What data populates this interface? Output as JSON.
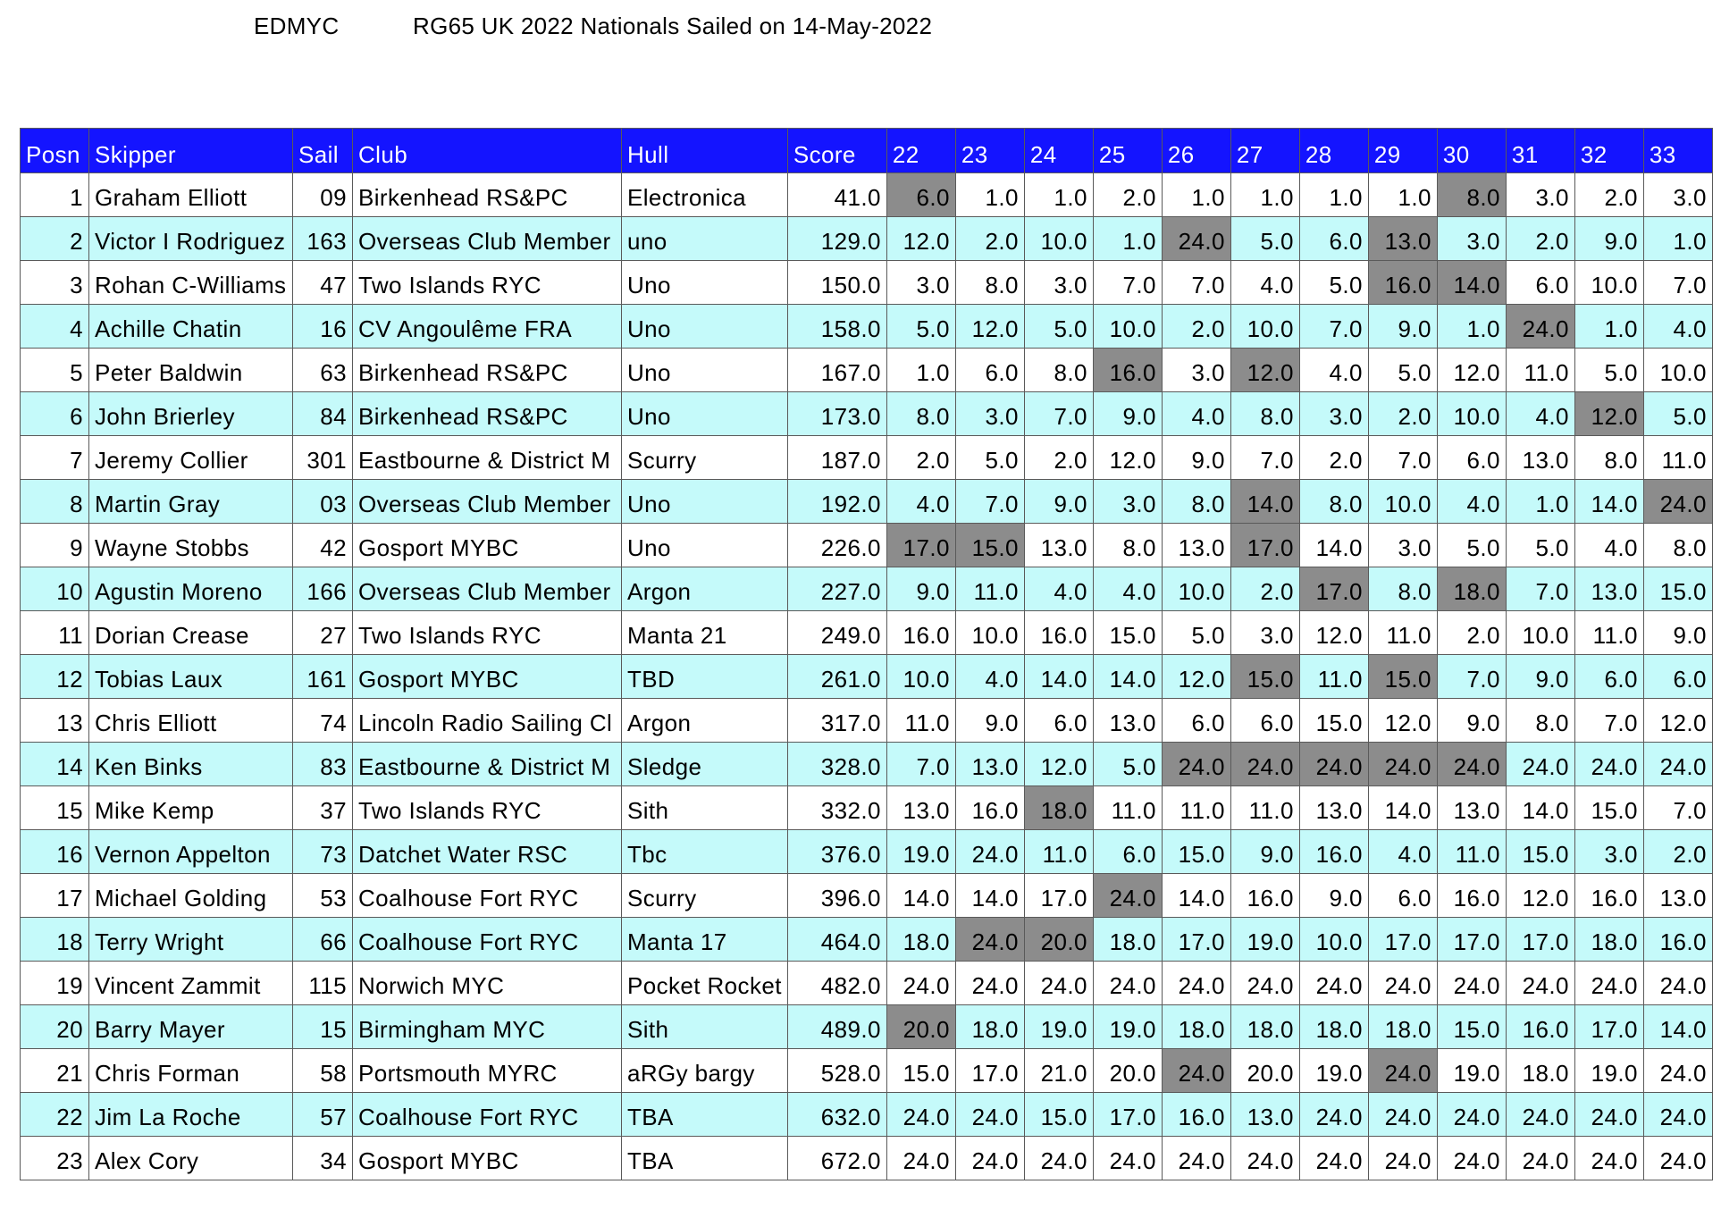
{
  "header": {
    "club_code": "EDMYC",
    "event_title": "RG65 UK 2022 Nationals Sailed on 14-May-2022"
  },
  "table": {
    "columns": [
      "Posn",
      "Skipper",
      "Sail",
      "Club",
      "Hull",
      "Score",
      "22",
      "23",
      "24",
      "25",
      "26",
      "27",
      "28",
      "29",
      "30",
      "31",
      "32",
      "33"
    ],
    "rows": [
      {
        "posn": "1",
        "skipper": "Graham Elliott",
        "sail": "09",
        "club": "Birkenhead RS&PC",
        "hull": "Electronica",
        "score": "41.0",
        "races": [
          "6.0",
          "1.0",
          "1.0",
          "2.0",
          "1.0",
          "1.0",
          "1.0",
          "1.0",
          "8.0",
          "3.0",
          "2.0",
          "3.0"
        ],
        "discards": [
          0,
          8
        ]
      },
      {
        "posn": "2",
        "skipper": "Victor I Rodriguez",
        "sail": "163",
        "club": "Overseas Club Member",
        "hull": "uno",
        "score": "129.0",
        "races": [
          "12.0",
          "2.0",
          "10.0",
          "1.0",
          "24.0",
          "5.0",
          "6.0",
          "13.0",
          "3.0",
          "2.0",
          "9.0",
          "1.0"
        ],
        "discards": [
          4,
          7
        ]
      },
      {
        "posn": "3",
        "skipper": "Rohan C-Williams",
        "sail": "47",
        "club": "Two Islands RYC",
        "hull": "Uno",
        "score": "150.0",
        "races": [
          "3.0",
          "8.0",
          "3.0",
          "7.0",
          "7.0",
          "4.0",
          "5.0",
          "16.0",
          "14.0",
          "6.0",
          "10.0",
          "7.0"
        ],
        "discards": [
          7,
          8
        ]
      },
      {
        "posn": "4",
        "skipper": "Achille Chatin",
        "sail": "16",
        "club": "CV Angoulême FRA",
        "hull": "Uno",
        "score": "158.0",
        "races": [
          "5.0",
          "12.0",
          "5.0",
          "10.0",
          "2.0",
          "10.0",
          "7.0",
          "9.0",
          "1.0",
          "24.0",
          "1.0",
          "4.0"
        ],
        "discards": [
          9
        ]
      },
      {
        "posn": "5",
        "skipper": "Peter Baldwin",
        "sail": "63",
        "club": "Birkenhead RS&PC",
        "hull": "Uno",
        "score": "167.0",
        "races": [
          "1.0",
          "6.0",
          "8.0",
          "16.0",
          "3.0",
          "12.0",
          "4.0",
          "5.0",
          "12.0",
          "11.0",
          "5.0",
          "10.0"
        ],
        "discards": [
          3,
          5
        ]
      },
      {
        "posn": "6",
        "skipper": "John Brierley",
        "sail": "84",
        "club": "Birkenhead RS&PC",
        "hull": "Uno",
        "score": "173.0",
        "races": [
          "8.0",
          "3.0",
          "7.0",
          "9.0",
          "4.0",
          "8.0",
          "3.0",
          "2.0",
          "10.0",
          "4.0",
          "12.0",
          "5.0"
        ],
        "discards": [
          10
        ]
      },
      {
        "posn": "7",
        "skipper": "Jeremy Collier",
        "sail": "301",
        "club": "Eastbourne & District M",
        "hull": "Scurry",
        "score": "187.0",
        "races": [
          "2.0",
          "5.0",
          "2.0",
          "12.0",
          "9.0",
          "7.0",
          "2.0",
          "7.0",
          "6.0",
          "13.0",
          "8.0",
          "11.0"
        ],
        "discards": []
      },
      {
        "posn": "8",
        "skipper": "Martin Gray",
        "sail": "03",
        "club": "Overseas Club Member",
        "hull": "Uno",
        "score": "192.0",
        "races": [
          "4.0",
          "7.0",
          "9.0",
          "3.0",
          "8.0",
          "14.0",
          "8.0",
          "10.0",
          "4.0",
          "1.0",
          "14.0",
          "24.0"
        ],
        "discards": [
          5,
          11
        ]
      },
      {
        "posn": "9",
        "skipper": "Wayne Stobbs",
        "sail": "42",
        "club": "Gosport MYBC",
        "hull": "Uno",
        "score": "226.0",
        "races": [
          "17.0",
          "15.0",
          "13.0",
          "8.0",
          "13.0",
          "17.0",
          "14.0",
          "3.0",
          "5.0",
          "5.0",
          "4.0",
          "8.0"
        ],
        "discards": [
          0,
          1,
          5
        ]
      },
      {
        "posn": "10",
        "skipper": "Agustin Moreno",
        "sail": "166",
        "club": "Overseas Club Member",
        "hull": "Argon",
        "score": "227.0",
        "races": [
          "9.0",
          "11.0",
          "4.0",
          "4.0",
          "10.0",
          "2.0",
          "17.0",
          "8.0",
          "18.0",
          "7.0",
          "13.0",
          "15.0"
        ],
        "discards": [
          6,
          8
        ]
      },
      {
        "posn": "11",
        "skipper": "Dorian Crease",
        "sail": "27",
        "club": "Two Islands RYC",
        "hull": "Manta 21",
        "score": "249.0",
        "races": [
          "16.0",
          "10.0",
          "16.0",
          "15.0",
          "5.0",
          "3.0",
          "12.0",
          "11.0",
          "2.0",
          "10.0",
          "11.0",
          "9.0"
        ],
        "discards": []
      },
      {
        "posn": "12",
        "skipper": "Tobias Laux",
        "sail": "161",
        "club": "Gosport MYBC",
        "hull": "TBD",
        "score": "261.0",
        "races": [
          "10.0",
          "4.0",
          "14.0",
          "14.0",
          "12.0",
          "15.0",
          "11.0",
          "15.0",
          "7.0",
          "9.0",
          "6.0",
          "6.0"
        ],
        "discards": [
          5,
          7
        ]
      },
      {
        "posn": "13",
        "skipper": "Chris Elliott",
        "sail": "74",
        "club": "Lincoln Radio Sailing Cl",
        "hull": "Argon",
        "score": "317.0",
        "races": [
          "11.0",
          "9.0",
          "6.0",
          "13.0",
          "6.0",
          "6.0",
          "15.0",
          "12.0",
          "9.0",
          "8.0",
          "7.0",
          "12.0"
        ],
        "discards": []
      },
      {
        "posn": "14",
        "skipper": "Ken Binks",
        "sail": "83",
        "club": "Eastbourne & District M",
        "hull": "Sledge",
        "score": "328.0",
        "races": [
          "7.0",
          "13.0",
          "12.0",
          "5.0",
          "24.0",
          "24.0",
          "24.0",
          "24.0",
          "24.0",
          "24.0",
          "24.0",
          "24.0"
        ],
        "discards": [
          4,
          5,
          6,
          7,
          8
        ]
      },
      {
        "posn": "15",
        "skipper": "Mike Kemp",
        "sail": "37",
        "club": "Two Islands RYC",
        "hull": "Sith",
        "score": "332.0",
        "races": [
          "13.0",
          "16.0",
          "18.0",
          "11.0",
          "11.0",
          "11.0",
          "13.0",
          "14.0",
          "13.0",
          "14.0",
          "15.0",
          "7.0"
        ],
        "discards": [
          2
        ]
      },
      {
        "posn": "16",
        "skipper": "Vernon Appelton",
        "sail": "73",
        "club": "Datchet Water RSC",
        "hull": "Tbc",
        "score": "376.0",
        "races": [
          "19.0",
          "24.0",
          "11.0",
          "6.0",
          "15.0",
          "9.0",
          "16.0",
          "4.0",
          "11.0",
          "15.0",
          "3.0",
          "2.0"
        ],
        "discards": []
      },
      {
        "posn": "17",
        "skipper": "Michael Golding",
        "sail": "53",
        "club": "Coalhouse Fort RYC",
        "hull": "Scurry",
        "score": "396.0",
        "races": [
          "14.0",
          "14.0",
          "17.0",
          "24.0",
          "14.0",
          "16.0",
          "9.0",
          "6.0",
          "16.0",
          "12.0",
          "16.0",
          "13.0"
        ],
        "discards": [
          3
        ]
      },
      {
        "posn": "18",
        "skipper": "Terry Wright",
        "sail": "66",
        "club": "Coalhouse Fort RYC",
        "hull": "Manta 17",
        "score": "464.0",
        "races": [
          "18.0",
          "24.0",
          "20.0",
          "18.0",
          "17.0",
          "19.0",
          "10.0",
          "17.0",
          "17.0",
          "17.0",
          "18.0",
          "16.0"
        ],
        "discards": [
          1,
          2
        ]
      },
      {
        "posn": "19",
        "skipper": "Vincent Zammit",
        "sail": "115",
        "club": "Norwich MYC",
        "hull": "Pocket Rocket",
        "score": "482.0",
        "races": [
          "24.0",
          "24.0",
          "24.0",
          "24.0",
          "24.0",
          "24.0",
          "24.0",
          "24.0",
          "24.0",
          "24.0",
          "24.0",
          "24.0"
        ],
        "discards": []
      },
      {
        "posn": "20",
        "skipper": "Barry Mayer",
        "sail": "15",
        "club": "Birmingham MYC",
        "hull": "Sith",
        "score": "489.0",
        "races": [
          "20.0",
          "18.0",
          "19.0",
          "19.0",
          "18.0",
          "18.0",
          "18.0",
          "18.0",
          "15.0",
          "16.0",
          "17.0",
          "14.0"
        ],
        "discards": [
          0
        ]
      },
      {
        "posn": "21",
        "skipper": "Chris Forman",
        "sail": "58",
        "club": "Portsmouth MYRC",
        "hull": "aRGy bargy",
        "score": "528.0",
        "races": [
          "15.0",
          "17.0",
          "21.0",
          "20.0",
          "24.0",
          "20.0",
          "19.0",
          "24.0",
          "19.0",
          "18.0",
          "19.0",
          "24.0"
        ],
        "discards": [
          4,
          7
        ]
      },
      {
        "posn": "22",
        "skipper": "Jim La Roche",
        "sail": "57",
        "club": "Coalhouse Fort RYC",
        "hull": "TBA",
        "score": "632.0",
        "races": [
          "24.0",
          "24.0",
          "15.0",
          "17.0",
          "16.0",
          "13.0",
          "24.0",
          "24.0",
          "24.0",
          "24.0",
          "24.0",
          "24.0"
        ],
        "discards": []
      },
      {
        "posn": "23",
        "skipper": "Alex Cory",
        "sail": "34",
        "club": "Gosport MYBC",
        "hull": "TBA",
        "score": "672.0",
        "races": [
          "24.0",
          "24.0",
          "24.0",
          "24.0",
          "24.0",
          "24.0",
          "24.0",
          "24.0",
          "24.0",
          "24.0",
          "24.0",
          "24.0"
        ],
        "discards": []
      }
    ]
  },
  "colors": {
    "header_bg": "#1414ff",
    "alt_row_bg": "#c5fafa",
    "discard_bg": "#8c8c8c"
  }
}
